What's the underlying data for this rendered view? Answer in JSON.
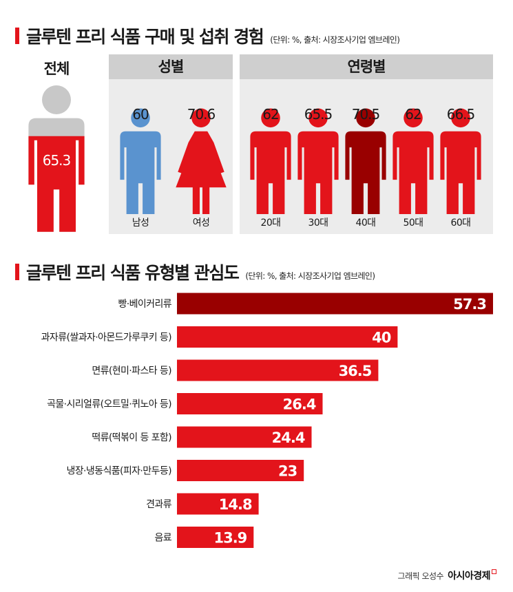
{
  "section1": {
    "title": "글루텐 프리 식품 구매 및 섭취 경험",
    "source_note": "(단위: %, 출처: 시장조사기업 엠브레인)",
    "total_label": "전체",
    "gender_header": "성별",
    "age_header": "연령별"
  },
  "section2": {
    "title": "글루텐 프리 식품 유형별 관심도",
    "source_note": "(단위: %, 출처: 시장조사기업 엠브레인)"
  },
  "credit": {
    "text": "그래픽 오성수",
    "logo": "아시아경제"
  },
  "colors": {
    "red": "#e3141b",
    "dark_red": "#990000",
    "blue": "#5a93cf",
    "gray": "#c8c8c8",
    "panel_bg": "#ececec",
    "panel_head": "#cfcfcf"
  },
  "chart_data": [
    {
      "type": "pictograph",
      "title": "글루텐 프리 식품 구매 및 섭취 경험",
      "unit": "%",
      "groups": [
        {
          "group": "전체",
          "items": [
            {
              "label": "",
              "value": 65.3,
              "icon": "person-fill-icon",
              "color": "#e3141b"
            }
          ]
        },
        {
          "group": "성별",
          "items": [
            {
              "label": "남성",
              "value": 60,
              "icon": "man-icon",
              "color": "#5a93cf"
            },
            {
              "label": "여성",
              "value": 70.6,
              "icon": "woman-icon",
              "color": "#e3141b"
            }
          ]
        },
        {
          "group": "연령별",
          "items": [
            {
              "label": "20대",
              "value": 62,
              "icon": "person-icon",
              "color": "#e3141b"
            },
            {
              "label": "30대",
              "value": 65.5,
              "icon": "person-icon",
              "color": "#e3141b"
            },
            {
              "label": "40대",
              "value": 70.5,
              "icon": "person-icon",
              "color": "#990000",
              "highlight": true
            },
            {
              "label": "50대",
              "value": 62,
              "icon": "person-icon",
              "color": "#e3141b"
            },
            {
              "label": "60대",
              "value": 66.5,
              "icon": "person-icon",
              "color": "#e3141b"
            }
          ]
        }
      ]
    },
    {
      "type": "bar",
      "orientation": "horizontal",
      "title": "글루텐 프리 식품 유형별 관심도",
      "unit": "%",
      "categories": [
        "빵·베이커리류",
        "과자류(쌀과자·아몬드가루쿠키 등)",
        "면류(현미·파스타 등)",
        "곡물·시리얼류(오트밀·퀴노아 등)",
        "떡류(떡볶이 등 포함)",
        "냉장·냉동식품(피자·만두등)",
        "견과류",
        "음료"
      ],
      "values": [
        57.3,
        40,
        36.5,
        26.4,
        24.4,
        23,
        14.8,
        13.9
      ],
      "highlight_index": 0,
      "xlim": [
        0,
        57.3
      ],
      "grid": false
    }
  ]
}
